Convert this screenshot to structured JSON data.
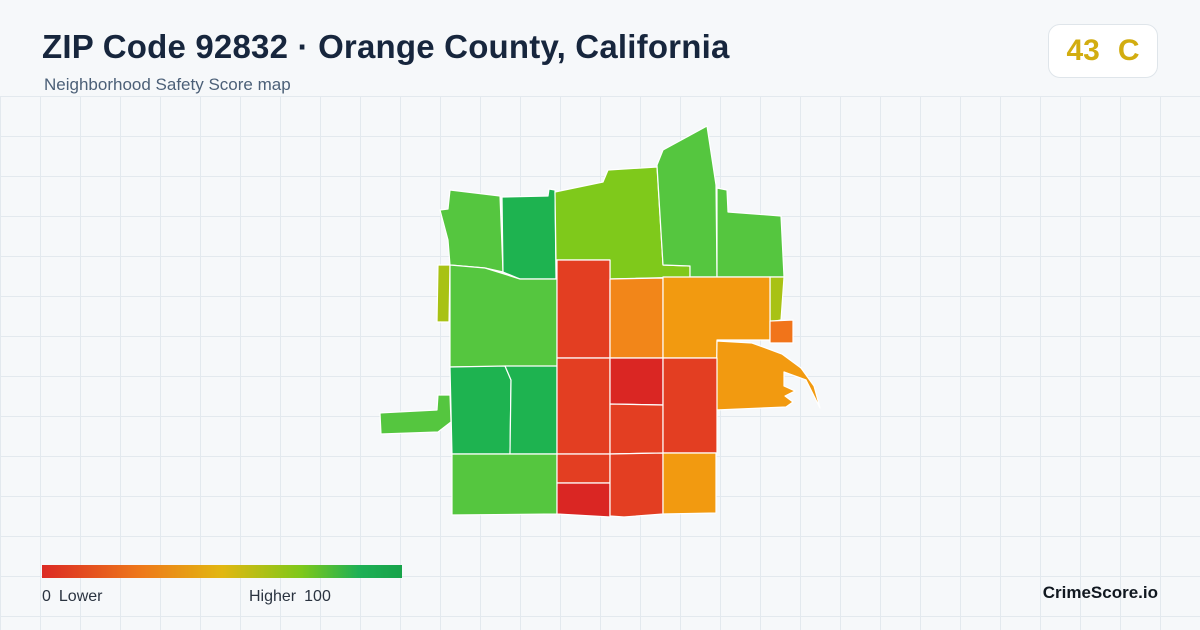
{
  "header": {
    "title": "ZIP Code 92832 · Orange County, California",
    "subtitle": "Neighborhood Safety Score map"
  },
  "score": {
    "value": "43",
    "grade": "C",
    "color": "#d2ad10"
  },
  "legend": {
    "min_value": "0",
    "min_label": "Lower",
    "max_label": "Higher",
    "max_value": "100",
    "colors": [
      "#dc2a24",
      "#ee7a1a",
      "#e2b711",
      "#7ec81a",
      "#1eb055",
      "#17a34a"
    ]
  },
  "brand": "CrimeScore.io",
  "map_regions_colors": {
    "green_light": "#55c63f",
    "green_dark": "#1eb350",
    "yellow_green": "#7fc91b",
    "olive": "#a8c214",
    "red": "#e33e22",
    "dark_red": "#da2623",
    "orange": "#f28619",
    "amber": "#f29a10"
  }
}
